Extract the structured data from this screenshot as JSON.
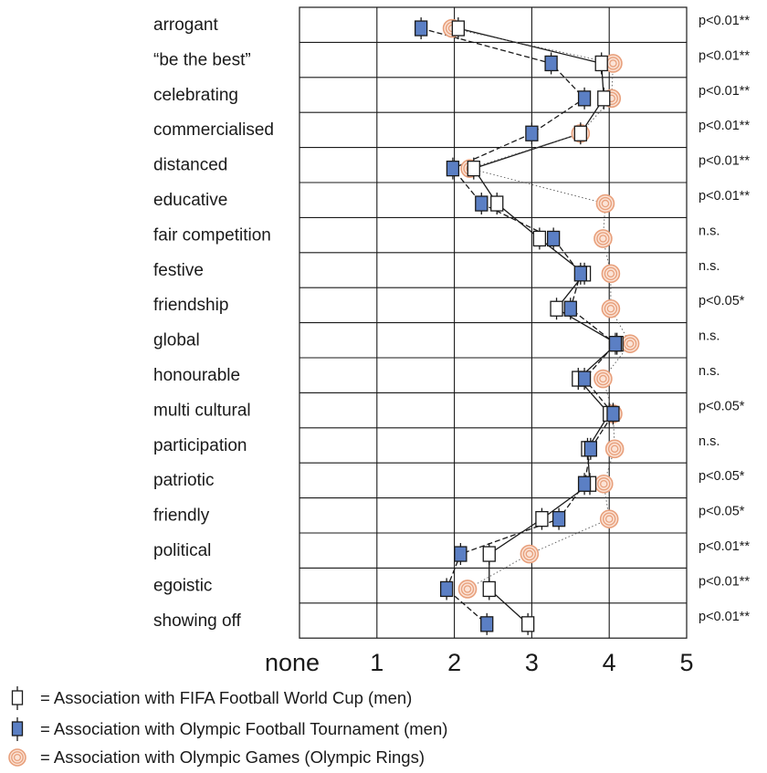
{
  "chart_data": {
    "type": "scatter",
    "orientation": "horizontal-profile",
    "xlim": [
      0,
      5
    ],
    "x_tick_labels": [
      "none",
      "1",
      "2",
      "3",
      "4",
      "5"
    ],
    "x_ticks": [
      0,
      1,
      2,
      3,
      4,
      5
    ],
    "grid": true,
    "categories": [
      "arrogant",
      "“be the best”",
      "celebrating",
      "commercialised",
      "distanced",
      "educative",
      "fair competition",
      "festive",
      "friendship",
      "global",
      "honourable",
      "multi cultural",
      "participation",
      "patriotic",
      "friendly",
      "political",
      "egoistic",
      "showing off"
    ],
    "significance": [
      "p<0.01**",
      "p<0.01**",
      "p<0.01**",
      "p<0.01**",
      "p<0.01**",
      "p<0.01**",
      "n.s.",
      "n.s.",
      "p<0.05*",
      "n.s.",
      "n.s.",
      "p<0.05*",
      "n.s.",
      "p<0.05*",
      "p<0.05*",
      "p<0.01**",
      "p<0.01**",
      "p<0.01**"
    ],
    "series": [
      {
        "name": "Association with FIFA Football World Cup (men)",
        "marker": "open-square",
        "line": "solid",
        "values": [
          2.05,
          3.9,
          3.93,
          3.63,
          2.25,
          2.55,
          3.1,
          3.68,
          3.32,
          4.1,
          3.6,
          4.0,
          3.72,
          3.75,
          3.13,
          2.45,
          2.45,
          2.95
        ]
      },
      {
        "name": "Association with Olympic Football Tournament (men)",
        "marker": "filled-square",
        "line": "dashed",
        "values": [
          1.57,
          3.25,
          3.68,
          3.0,
          1.98,
          2.35,
          3.28,
          3.63,
          3.5,
          4.08,
          3.68,
          4.05,
          3.76,
          3.68,
          3.35,
          2.08,
          1.9,
          2.42
        ]
      },
      {
        "name": "Association with Olympic Games (Olympic Rings)",
        "marker": "rings",
        "line": "dotted",
        "values": [
          1.97,
          4.05,
          4.03,
          3.63,
          2.2,
          3.95,
          3.92,
          4.02,
          4.02,
          4.27,
          3.92,
          4.05,
          4.07,
          3.93,
          4.0,
          2.97,
          2.17,
          null
        ]
      }
    ],
    "colors": {
      "olympic_football_fill": "#5b7fc4",
      "rings": "#e8a07c",
      "grid": "#1a1a1a"
    }
  },
  "legend": [
    {
      "icon": "open-square-icon",
      "text": "= Association with FIFA Football World Cup (men)"
    },
    {
      "icon": "filled-square-icon",
      "text": "= Association with Olympic Football Tournament (men)"
    },
    {
      "icon": "olympic-rings-icon",
      "text": "= Association with Olympic Games (Olympic Rings)"
    }
  ]
}
